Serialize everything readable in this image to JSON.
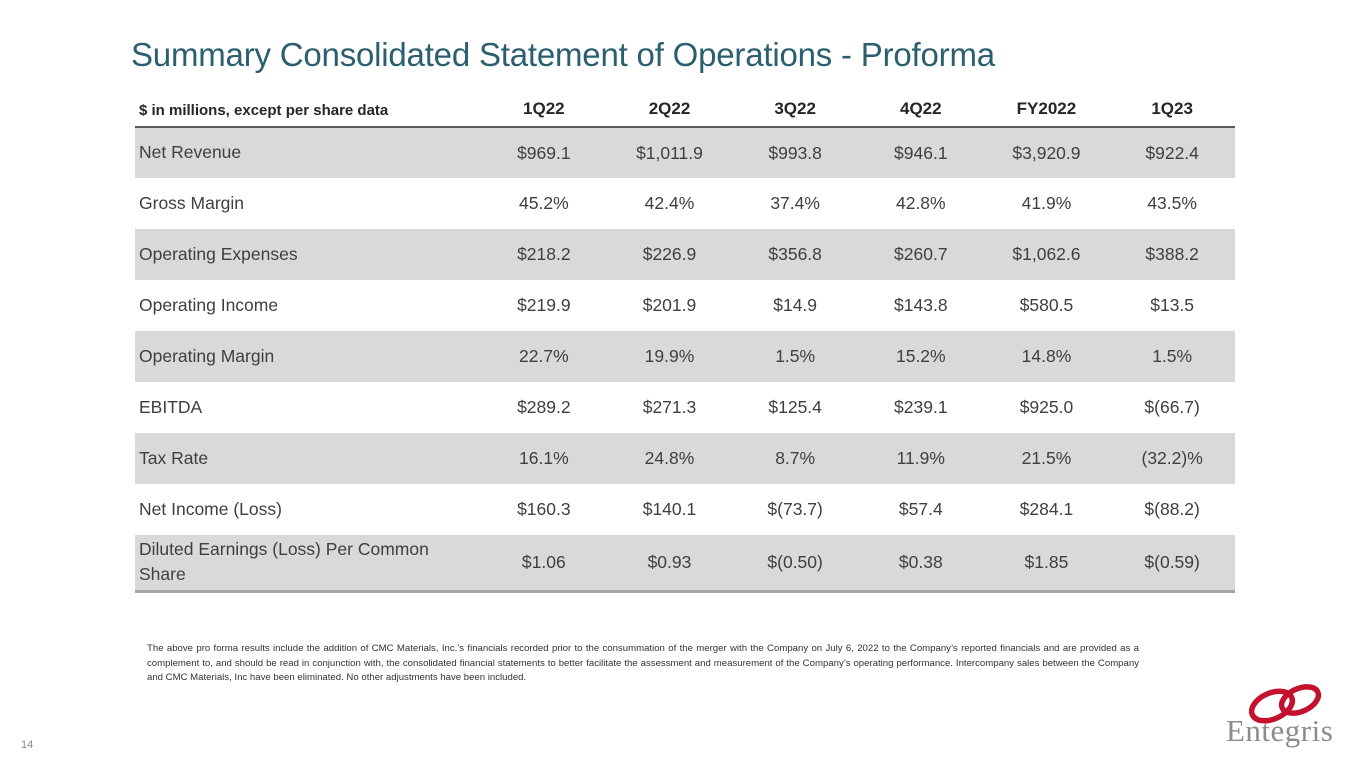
{
  "slide": {
    "title": "Summary Consolidated Statement of Operations - Proforma",
    "page_number": "14",
    "footnote": "The above pro forma results include the addition of CMC Materials, Inc.’s financials recorded prior to the consummation of the merger with the Company on July 6, 2022 to the Company’s reported financials and are provided as a complement to, and should be read in conjunction with, the consolidated financial statements to better facilitate the assessment and measurement of the Company’s operating performance. Intercompany sales between the Company and CMC Materials, Inc have been eliminated. No other adjustments have been included.",
    "logo_text": "Entegris"
  },
  "colors": {
    "title_teal": "#2B5F6F",
    "row_shade": "#D9D9D9",
    "header_underline": "#595959",
    "table_bottom_border": "#A6A6A6",
    "body_text": "#3F3F3F",
    "logo_red": "#C4122E",
    "logo_gray": "#8C8C8C"
  },
  "table": {
    "header_label": "$ in millions, except per share data",
    "columns": [
      "1Q22",
      "2Q22",
      "3Q22",
      "4Q22",
      "FY2022",
      "1Q23"
    ],
    "rows": [
      {
        "label": "Net Revenue",
        "shaded": true,
        "values": [
          "$969.1",
          "$1,011.9",
          "$993.8",
          "$946.1",
          "$3,920.9",
          "$922.4"
        ]
      },
      {
        "label": "Gross Margin",
        "shaded": false,
        "values": [
          "45.2%",
          "42.4%",
          "37.4%",
          "42.8%",
          "41.9%",
          "43.5%"
        ]
      },
      {
        "label": "Operating Expenses",
        "shaded": true,
        "values": [
          "$218.2",
          "$226.9",
          "$356.8",
          "$260.7",
          "$1,062.6",
          "$388.2"
        ]
      },
      {
        "label": "Operating Income",
        "shaded": false,
        "values": [
          "$219.9",
          "$201.9",
          "$14.9",
          "$143.8",
          "$580.5",
          "$13.5"
        ]
      },
      {
        "label": "Operating Margin",
        "shaded": true,
        "values": [
          "22.7%",
          "19.9%",
          "1.5%",
          "15.2%",
          "14.8%",
          "1.5%"
        ]
      },
      {
        "label": "EBITDA",
        "shaded": false,
        "values": [
          "$289.2",
          "$271.3",
          "$125.4",
          "$239.1",
          "$925.0",
          "$(66.7)"
        ]
      },
      {
        "label": "Tax Rate",
        "shaded": true,
        "values": [
          "16.1%",
          "24.8%",
          "8.7%",
          "11.9%",
          "21.5%",
          "(32.2)%"
        ]
      },
      {
        "label": "Net Income (Loss)",
        "shaded": false,
        "values": [
          "$160.3",
          "$140.1",
          "$(73.7)",
          "$57.4",
          "$284.1",
          "$(88.2)"
        ]
      },
      {
        "label": "Diluted Earnings (Loss) Per Common Share",
        "shaded": true,
        "values": [
          "$1.06",
          "$0.93",
          "$(0.50)",
          "$0.38",
          "$1.85",
          "$(0.59)"
        ]
      }
    ]
  }
}
